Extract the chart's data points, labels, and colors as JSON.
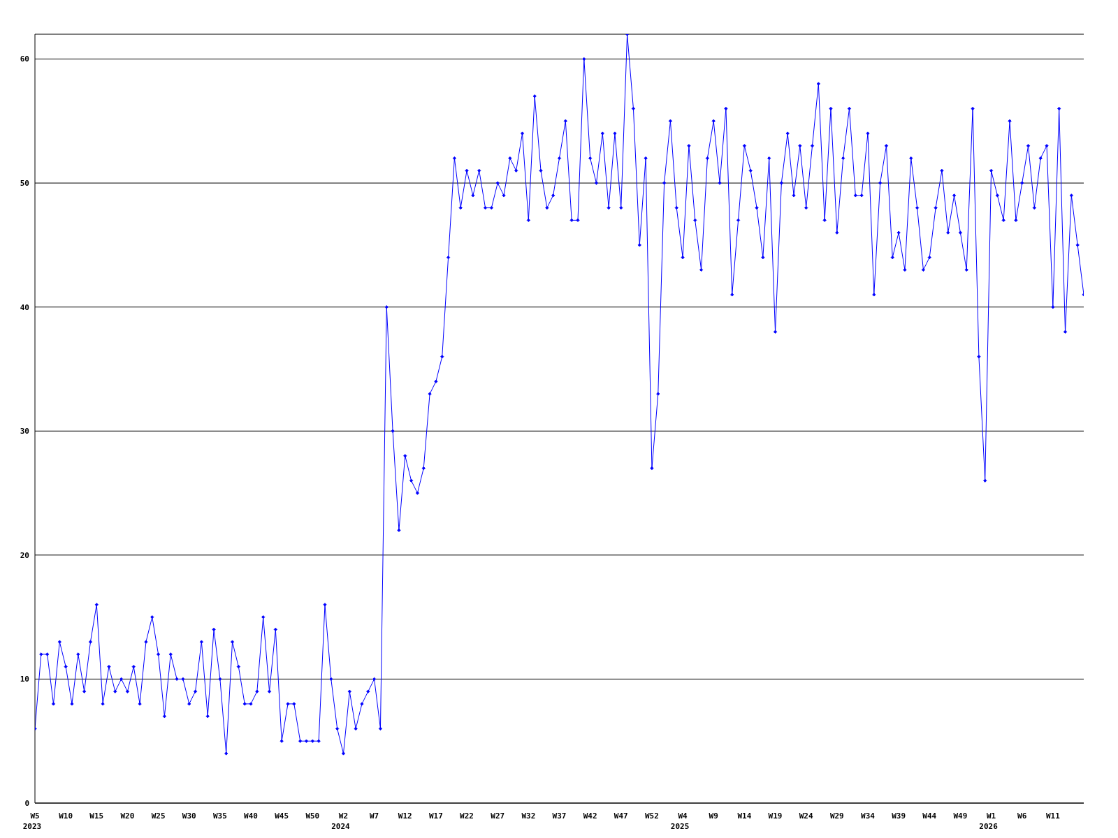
{
  "chart_data": {
    "type": "line",
    "categories": [
      "W5\n2023",
      null,
      null,
      null,
      null,
      "W10",
      null,
      null,
      null,
      null,
      "W15",
      null,
      null,
      null,
      null,
      "W20",
      null,
      null,
      null,
      null,
      "W25",
      null,
      null,
      null,
      null,
      "W30",
      null,
      null,
      null,
      null,
      "W35",
      null,
      null,
      null,
      null,
      "W40",
      null,
      null,
      null,
      null,
      "W45",
      null,
      null,
      null,
      null,
      "W50",
      null,
      null,
      null,
      null,
      "W2\n2024",
      null,
      null,
      null,
      null,
      "W7",
      null,
      null,
      null,
      null,
      "W12",
      null,
      null,
      null,
      null,
      "W17",
      null,
      null,
      null,
      null,
      "W22",
      null,
      null,
      null,
      null,
      "W27",
      null,
      null,
      null,
      null,
      "W32",
      null,
      null,
      null,
      null,
      "W37",
      null,
      null,
      null,
      null,
      "W42",
      null,
      null,
      null,
      null,
      "W47",
      null,
      null,
      null,
      null,
      "W52",
      null,
      null,
      null,
      null,
      "W4\n2025",
      null,
      null,
      null,
      null,
      "W9",
      null,
      null,
      null,
      null,
      "W14",
      null,
      null,
      null,
      null,
      "W19",
      null,
      null,
      null,
      null,
      "W24",
      null,
      null,
      null,
      null,
      "W29",
      null,
      null,
      null,
      null,
      "W34",
      null,
      null,
      null,
      null,
      "W39",
      null,
      null,
      null,
      null,
      "W44",
      null,
      null,
      null,
      null,
      "W49",
      null,
      null,
      null,
      null,
      "W1\n2026",
      null,
      null,
      null,
      null,
      "W6",
      null,
      null,
      null,
      null,
      "W11",
      null,
      null,
      null,
      null,
      null
    ],
    "series": [
      {
        "color": "#0000ff",
        "values": [
          6,
          12,
          12,
          8,
          13,
          11,
          8,
          12,
          9,
          13,
          16,
          8,
          11,
          9,
          10,
          9,
          11,
          8,
          13,
          15,
          12,
          7,
          12,
          10,
          10,
          8,
          9,
          13,
          7,
          14,
          10,
          4,
          13,
          11,
          8,
          8,
          9,
          15,
          9,
          14,
          5,
          8,
          8,
          5,
          5,
          5,
          5,
          16,
          10,
          6,
          4,
          9,
          6,
          8,
          9,
          10,
          6,
          40,
          30,
          22,
          28,
          26,
          25,
          27,
          33,
          34,
          36,
          44,
          52,
          48,
          51,
          49,
          51,
          48,
          48,
          50,
          49,
          52,
          51,
          54,
          47,
          57,
          51,
          48,
          49,
          52,
          55,
          47,
          47,
          60,
          52,
          50,
          54,
          48,
          54,
          48,
          62,
          56,
          45,
          52,
          27,
          33,
          50,
          55,
          48,
          44,
          53,
          47,
          43,
          52,
          55,
          50,
          56,
          41,
          47,
          53,
          51,
          48,
          44,
          52,
          38,
          50,
          54,
          49,
          53,
          48,
          53,
          58,
          47,
          56,
          46,
          52,
          56,
          49,
          49,
          54,
          41,
          50,
          53,
          44,
          46,
          43,
          52,
          48,
          43,
          44,
          48,
          51,
          46,
          49,
          46,
          43,
          56,
          36,
          26,
          51,
          49,
          47,
          55,
          47,
          50,
          53,
          48,
          52,
          53,
          40,
          56,
          38,
          49,
          45,
          41
        ]
      }
    ],
    "ylim": [
      0,
      62
    ],
    "yticks": [
      0,
      10,
      20,
      30,
      40,
      50,
      60
    ],
    "grid": "y",
    "legend": false,
    "marker": "diamond",
    "line_style": "solid"
  }
}
